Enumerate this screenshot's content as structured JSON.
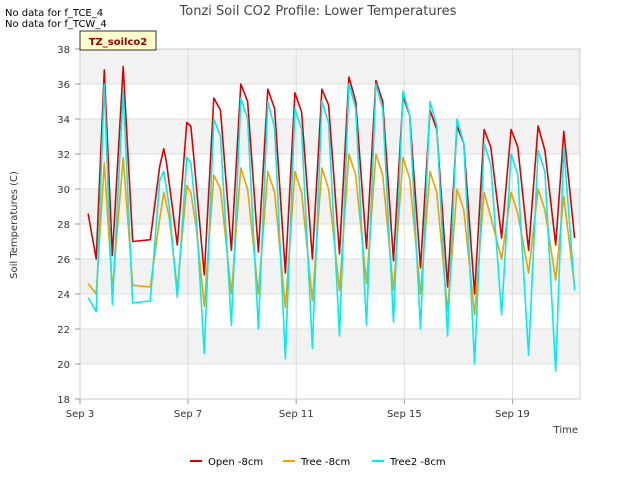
{
  "notes": [
    "No data for f_TCE_4",
    "No data for f_TCW_4"
  ],
  "badge": "TZ_soilco2",
  "chart_data": {
    "type": "line",
    "title": "Tonzi Soil CO2 Profile: Lower Temperatures",
    "xlabel": "Time",
    "ylabel": "Soil Temperatures (C)",
    "ylim": [
      18,
      38
    ],
    "yticks": [
      18,
      20,
      22,
      24,
      26,
      28,
      30,
      32,
      34,
      36,
      38
    ],
    "xlim": [
      3,
      21.5
    ],
    "xticks": [
      {
        "value": 3,
        "label": "Sep 3"
      },
      {
        "value": 7,
        "label": "Sep 7"
      },
      {
        "value": 11,
        "label": "Sep 11"
      },
      {
        "value": 15,
        "label": "Sep 15"
      },
      {
        "value": 19,
        "label": "Sep 19"
      }
    ],
    "grid": true,
    "legend_position": "bottom",
    "series": [
      {
        "name": "Open -8cm",
        "color": "#dd0000",
        "x": [
          3.3,
          3.6,
          3.9,
          4.2,
          4.6,
          4.95,
          5.6,
          5.95,
          6.1,
          6.2,
          6.6,
          6.95,
          7.1,
          7.2,
          7.6,
          7.95,
          8.2,
          8.6,
          8.95,
          9.2,
          9.6,
          9.95,
          10.2,
          10.6,
          10.95,
          11.2,
          11.6,
          11.95,
          12.2,
          12.6,
          12.95,
          13.2,
          13.6,
          13.95,
          14.2,
          14.6,
          14.95,
          15.2,
          15.6,
          15.95,
          16.2,
          16.6,
          16.95,
          17.2,
          17.6,
          17.95,
          18.2,
          18.6,
          18.95,
          19.2,
          19.6,
          19.95,
          20.2,
          20.6,
          20.9,
          21.3
        ],
        "y": [
          28.6,
          26.0,
          36.8,
          26.2,
          37.0,
          27.0,
          27.1,
          31.3,
          32.3,
          31.5,
          26.8,
          33.8,
          33.6,
          32.0,
          25.1,
          35.2,
          34.5,
          26.5,
          36.0,
          35.0,
          26.4,
          35.7,
          34.6,
          25.2,
          35.5,
          34.4,
          26.0,
          35.7,
          34.8,
          26.3,
          36.4,
          35.0,
          26.6,
          36.2,
          35.0,
          25.9,
          35.3,
          34.2,
          25.5,
          34.5,
          33.4,
          24.4,
          33.6,
          32.6,
          24.0,
          33.4,
          32.4,
          27.2,
          33.4,
          32.4,
          26.5,
          33.6,
          32.2,
          26.8,
          33.3,
          27.2
        ]
      },
      {
        "name": "Tree -8cm",
        "color": "#f0a000",
        "x": [
          3.3,
          3.6,
          3.9,
          4.2,
          4.6,
          4.95,
          5.6,
          5.95,
          6.1,
          6.3,
          6.6,
          6.95,
          7.1,
          7.3,
          7.6,
          7.95,
          8.2,
          8.6,
          8.95,
          9.2,
          9.6,
          9.95,
          10.2,
          10.6,
          10.95,
          11.2,
          11.6,
          11.95,
          12.2,
          12.6,
          12.95,
          13.2,
          13.6,
          13.95,
          14.2,
          14.6,
          14.95,
          15.2,
          15.6,
          15.95,
          16.2,
          16.6,
          16.95,
          17.2,
          17.6,
          17.95,
          18.2,
          18.6,
          18.95,
          19.2,
          19.6,
          19.95,
          20.2,
          20.6,
          20.9,
          21.3
        ],
        "y": [
          24.6,
          24.0,
          31.5,
          24.2,
          31.8,
          24.5,
          24.4,
          28.3,
          29.8,
          28.4,
          24.3,
          30.2,
          29.8,
          27.8,
          23.3,
          30.8,
          30.0,
          24.0,
          31.2,
          30.0,
          24.0,
          31.0,
          29.8,
          23.2,
          31.0,
          29.8,
          23.6,
          31.2,
          30.0,
          24.2,
          32.0,
          30.8,
          24.6,
          32.0,
          30.8,
          24.2,
          31.8,
          30.6,
          24.0,
          31.0,
          29.8,
          23.0,
          30.0,
          28.8,
          22.8,
          29.8,
          28.4,
          26.0,
          29.8,
          28.6,
          25.2,
          30.0,
          28.8,
          24.8,
          29.6,
          24.4
        ]
      },
      {
        "name": "Tree2 -8cm",
        "color": "#00eeee",
        "x": [
          3.3,
          3.6,
          3.9,
          4.2,
          4.6,
          4.95,
          5.6,
          5.95,
          6.1,
          6.3,
          6.6,
          6.95,
          7.1,
          7.3,
          7.6,
          7.95,
          8.2,
          8.6,
          8.95,
          9.2,
          9.6,
          9.95,
          10.2,
          10.6,
          10.95,
          11.2,
          11.6,
          11.95,
          12.2,
          12.6,
          12.95,
          13.2,
          13.6,
          13.95,
          14.2,
          14.6,
          14.95,
          15.2,
          15.6,
          15.95,
          16.2,
          16.6,
          16.95,
          17.2,
          17.6,
          17.95,
          18.2,
          18.6,
          18.95,
          19.2,
          19.6,
          19.95,
          20.2,
          20.6,
          20.9,
          21.3
        ],
        "y": [
          23.8,
          23.0,
          36.0,
          23.4,
          35.6,
          23.5,
          23.6,
          30.5,
          31.0,
          29.0,
          23.8,
          31.8,
          31.5,
          28.5,
          20.6,
          34.0,
          33.0,
          22.2,
          35.2,
          34.0,
          22.0,
          35.0,
          33.5,
          20.3,
          34.6,
          33.4,
          20.9,
          35.0,
          33.8,
          21.6,
          36.0,
          34.6,
          22.2,
          36.0,
          34.6,
          22.4,
          35.6,
          34.2,
          22.0,
          35.0,
          33.6,
          21.6,
          34.0,
          32.6,
          20.0,
          32.6,
          31.4,
          22.8,
          32.0,
          30.8,
          20.5,
          32.2,
          31.0,
          19.6,
          32.4,
          24.2
        ]
      }
    ]
  }
}
